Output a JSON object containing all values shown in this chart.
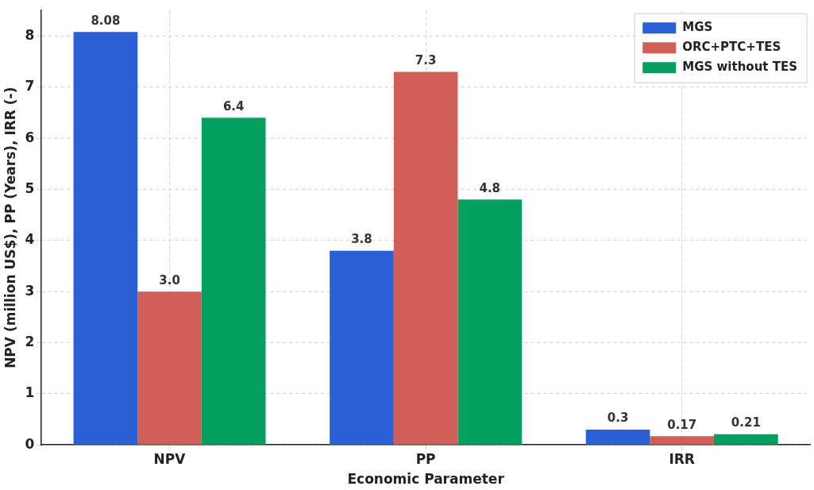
{
  "chart_data": {
    "type": "bar",
    "xlabel": "Economic Parameter",
    "ylabel": "NPV (million US$), PP (Years), IRR (-)",
    "categories": [
      "NPV",
      "PP",
      "IRR"
    ],
    "series": [
      {
        "name": "MGS",
        "color": "#2a5fd6",
        "values": [
          8.08,
          3.8,
          0.3
        ],
        "value_labels": [
          "8.08",
          "3.8",
          "0.3"
        ]
      },
      {
        "name": "ORC+PTC+TES",
        "color": "#d15f58",
        "values": [
          3.0,
          7.3,
          0.17
        ],
        "value_labels": [
          "3.0",
          "7.3",
          "0.17"
        ]
      },
      {
        "name": "MGS without TES",
        "color": "#04a05f",
        "values": [
          6.4,
          4.8,
          0.21
        ],
        "value_labels": [
          "6.4",
          "4.8",
          "0.21"
        ]
      }
    ],
    "ylim": [
      0,
      8.5
    ],
    "yticks": [
      0,
      1,
      2,
      3,
      4,
      5,
      6,
      7,
      8
    ],
    "grid": true,
    "legend": "top right"
  }
}
